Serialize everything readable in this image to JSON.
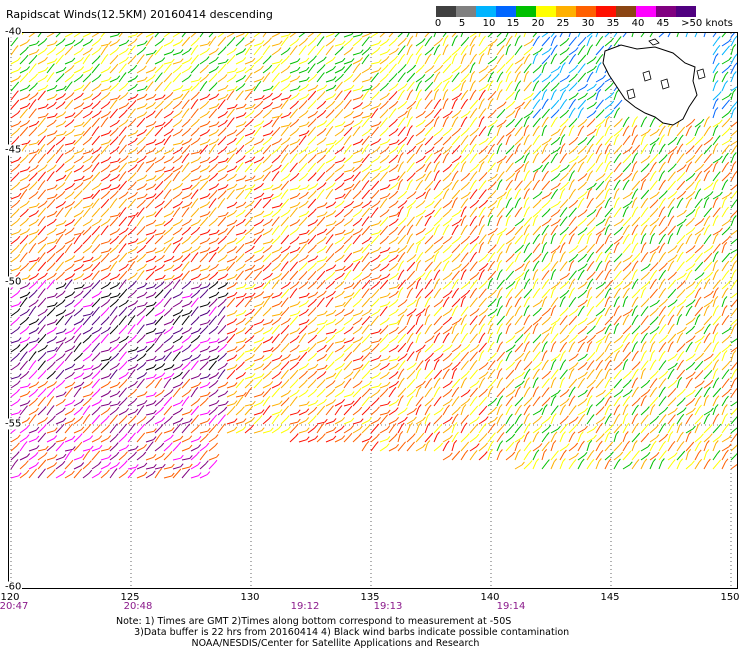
{
  "title": "Rapidscat Winds(12.5KM) 20160414 descending",
  "legend": {
    "colors": [
      "#404040",
      "#808080",
      "#00b4ff",
      "#0066ff",
      "#00c000",
      "#ffff00",
      "#ffb000",
      "#ff6000",
      "#ff1000",
      "#8b4513",
      "#ff00ff",
      "#800080",
      "#500080"
    ],
    "labels": [
      "0",
      "5",
      "10",
      "15",
      "20",
      "25",
      "30",
      "35",
      "40",
      "45",
      ">50 knots"
    ]
  },
  "axes": {
    "latitudes": [
      "-40",
      "-45",
      "-50",
      "-55",
      "-60"
    ],
    "longitudes": [
      "120",
      "125",
      "130",
      "135",
      "140",
      "145",
      "150"
    ],
    "times": [
      "20:47",
      "20:48",
      "19:12",
      "19:13",
      "19:14"
    ]
  },
  "notes": [
    "Note: 1) Times are GMT 2)Times along bottom correspond to measurement at -50S",
    "      3)Data buffer is 22 hrs from 20160414 4) Black wind barbs indicate possible contamination",
    "                         NOAA/NESDIS/Center for Satellite Applications and Research"
  ],
  "land": {
    "name": "Tasmania"
  }
}
